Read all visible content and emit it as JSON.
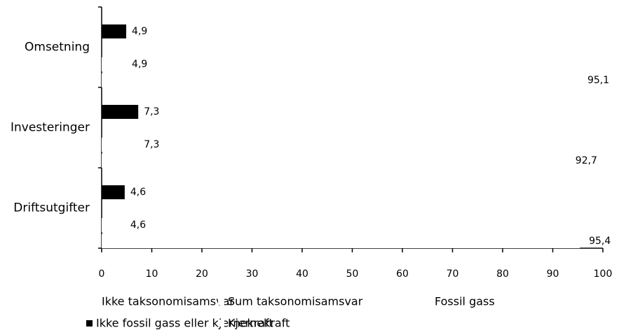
{
  "chart_data": {
    "type": "bar",
    "orientation": "horizontal",
    "categories": [
      "Omsetning",
      "Investeringer",
      "Driftsutgifter"
    ],
    "series": [
      {
        "name": "Ikke taksonomisamsvar",
        "color": "#ffffff",
        "values": [
          95.1,
          92.7,
          95.4
        ],
        "value_labels": [
          "95,1",
          "92,7",
          "95,4"
        ]
      },
      {
        "name": "Sum taksonomisamsvar",
        "color": "#ffffff",
        "values": [
          4.9,
          7.3,
          4.6
        ],
        "value_labels": [
          "4,9",
          "7,3",
          "4,6"
        ]
      },
      {
        "name": "Fossil gass",
        "color": "#ffffff",
        "values": [
          null,
          null,
          null
        ]
      },
      {
        "name": "Ikke fossil gass eller kjernekraft",
        "color": "#000000",
        "values": [
          4.9,
          7.3,
          4.6
        ],
        "value_labels": [
          "4,9",
          "7,3",
          "4,6"
        ]
      },
      {
        "name": "Kjernekraft",
        "color": "#ffffff",
        "values": [
          null,
          null,
          null
        ]
      }
    ],
    "xlim": [
      0,
      100
    ],
    "xticks": [
      0,
      10,
      20,
      30,
      40,
      50,
      60,
      70,
      80,
      90,
      100
    ],
    "grid": false
  }
}
